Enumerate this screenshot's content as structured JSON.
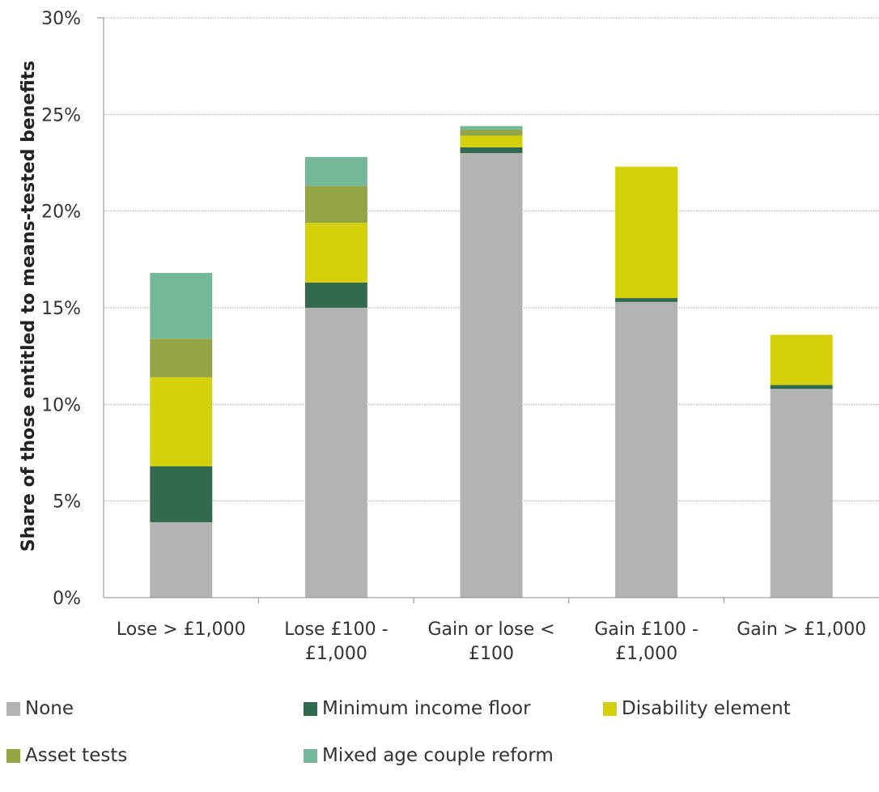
{
  "chart_data": {
    "type": "bar",
    "stacked": true,
    "categories": [
      "Lose > £1,000",
      "Lose £100 - £1,000",
      "Gain or lose < £100",
      "Gain £100 - £1,000",
      "Gain > £1,000"
    ],
    "category_lines": [
      [
        "Lose > £1,000"
      ],
      [
        "Lose £100 -",
        "£1,000"
      ],
      [
        "Gain or lose <",
        "£100"
      ],
      [
        "Gain £100 -",
        "£1,000"
      ],
      [
        "Gain > £1,000"
      ]
    ],
    "series": [
      {
        "name": "None",
        "color": "#b3b3b3",
        "values": [
          3.9,
          15.0,
          23.0,
          15.3,
          10.8
        ]
      },
      {
        "name": "Minimum income floor",
        "color": "#326a50",
        "values": [
          2.9,
          1.3,
          0.3,
          0.2,
          0.2
        ]
      },
      {
        "name": "Disability element",
        "color": "#d5d00c",
        "values": [
          4.6,
          3.1,
          0.6,
          6.8,
          2.6
        ]
      },
      {
        "name": "Asset tests",
        "color": "#94a545",
        "values": [
          2.0,
          1.9,
          0.3,
          0.0,
          0.0
        ]
      },
      {
        "name": "Mixed age couple reform",
        "color": "#72b899",
        "values": [
          3.4,
          1.5,
          0.2,
          0.0,
          0.0
        ]
      }
    ],
    "ylabel": "Share of those entitled to means-tested benefits",
    "ylim": [
      0,
      30
    ],
    "yticks": [
      0,
      5,
      10,
      15,
      20,
      25,
      30
    ],
    "ytick_format": "percent",
    "grid": true,
    "legend_position": "bottom"
  }
}
